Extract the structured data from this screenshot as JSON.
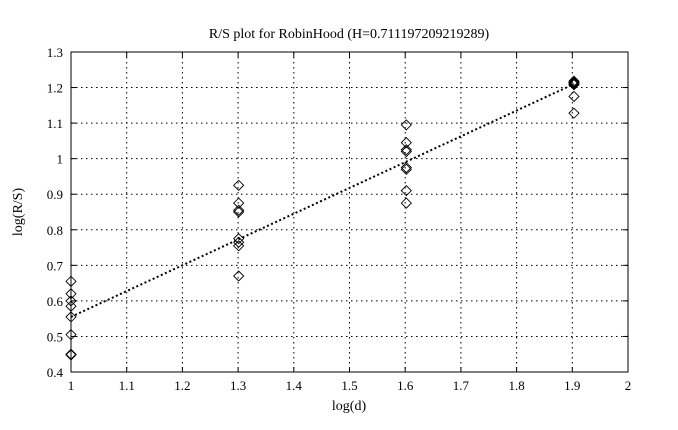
{
  "chart_data": {
    "type": "scatter",
    "title": "R/S plot for RobinHood (H=0.711197209219289)",
    "xlabel": "log(d)",
    "ylabel": "log(R/S)",
    "xlim": [
      1,
      2
    ],
    "ylim": [
      0.4,
      1.3
    ],
    "xticks": [
      "1",
      "1.1",
      "1.2",
      "1.3",
      "1.4",
      "1.5",
      "1.6",
      "1.7",
      "1.8",
      "1.9",
      "2"
    ],
    "yticks": [
      "0.4",
      "0.5",
      "0.6",
      "0.7",
      "0.8",
      "0.9",
      "1",
      "1.1",
      "1.2",
      "1.3"
    ],
    "grid": true,
    "marker": "diamond",
    "points": [
      {
        "x": 1.0,
        "y": 0.655
      },
      {
        "x": 1.0,
        "y": 0.62
      },
      {
        "x": 1.0,
        "y": 0.6
      },
      {
        "x": 1.0,
        "y": 0.585
      },
      {
        "x": 1.0,
        "y": 0.555
      },
      {
        "x": 1.0,
        "y": 0.505
      },
      {
        "x": 1.0,
        "y": 0.45
      },
      {
        "x": 1.0,
        "y": 0.448
      },
      {
        "x": 1.301,
        "y": 0.925
      },
      {
        "x": 1.301,
        "y": 0.875
      },
      {
        "x": 1.301,
        "y": 0.855
      },
      {
        "x": 1.301,
        "y": 0.85
      },
      {
        "x": 1.301,
        "y": 0.775
      },
      {
        "x": 1.301,
        "y": 0.765
      },
      {
        "x": 1.301,
        "y": 0.755
      },
      {
        "x": 1.301,
        "y": 0.67
      },
      {
        "x": 1.602,
        "y": 1.095
      },
      {
        "x": 1.602,
        "y": 1.045
      },
      {
        "x": 1.602,
        "y": 1.025
      },
      {
        "x": 1.602,
        "y": 1.02
      },
      {
        "x": 1.602,
        "y": 0.975
      },
      {
        "x": 1.602,
        "y": 0.97
      },
      {
        "x": 1.602,
        "y": 0.91
      },
      {
        "x": 1.602,
        "y": 0.875
      },
      {
        "x": 1.903,
        "y": 1.218
      },
      {
        "x": 1.903,
        "y": 1.215
      },
      {
        "x": 1.903,
        "y": 1.213
      },
      {
        "x": 1.903,
        "y": 1.21
      },
      {
        "x": 1.903,
        "y": 1.208
      },
      {
        "x": 1.903,
        "y": 1.175
      },
      {
        "x": 1.903,
        "y": 1.128
      }
    ],
    "fit_line": {
      "x": [
        1.0,
        1.903
      ],
      "y": [
        0.555,
        1.21
      ]
    }
  }
}
